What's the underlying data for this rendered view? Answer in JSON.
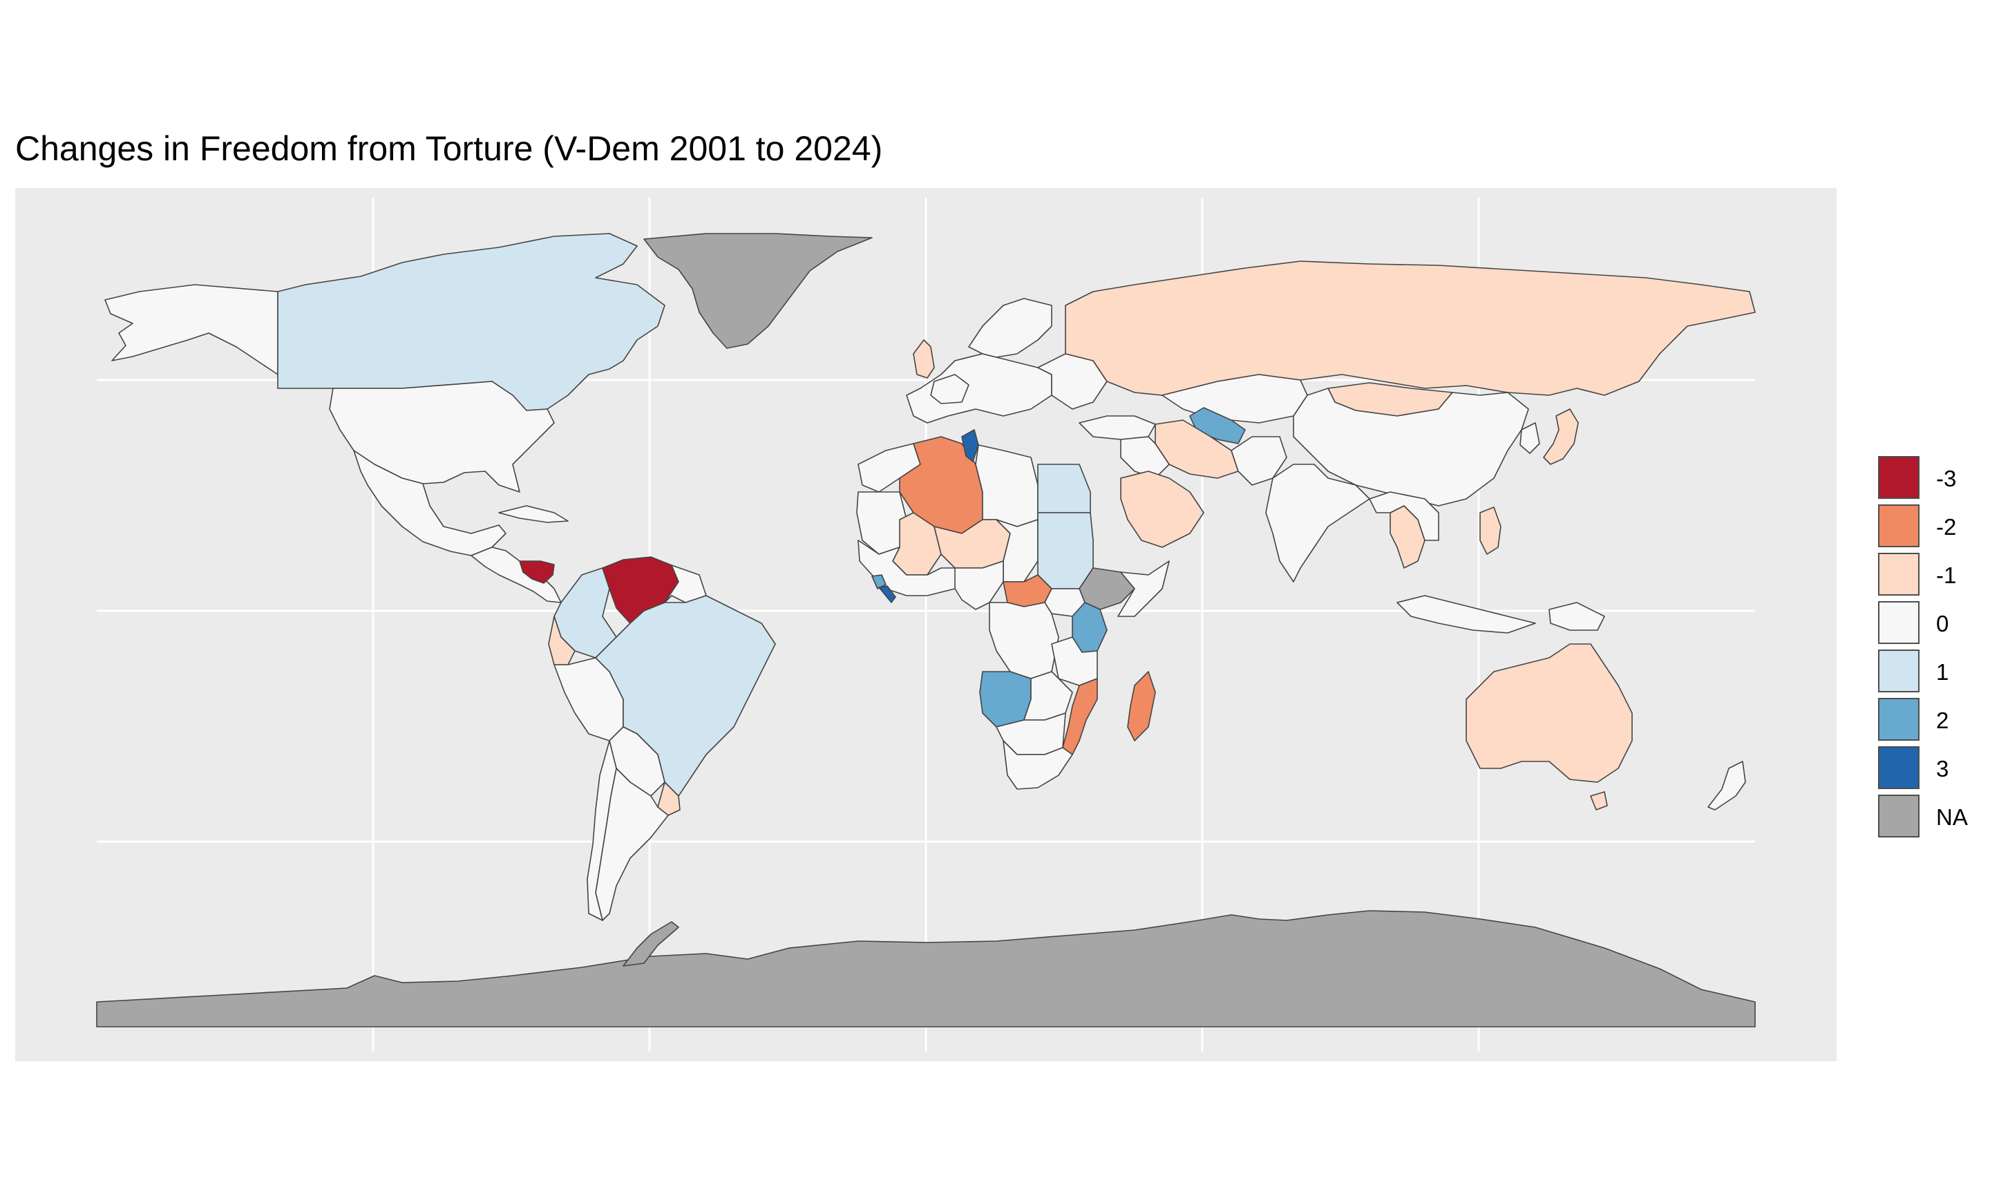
{
  "title": "Changes in Freedom from Torture (V-Dem 2001 to 2024)",
  "legend": [
    {
      "label": "-3",
      "color": "#b2182b"
    },
    {
      "label": "-2",
      "color": "#ef8a62"
    },
    {
      "label": "-1",
      "color": "#fddbc7"
    },
    {
      "label": "0",
      "color": "#f7f7f7"
    },
    {
      "label": "1",
      "color": "#d1e5f0"
    },
    {
      "label": "2",
      "color": "#67a9cf"
    },
    {
      "label": "3",
      "color": "#2166ac"
    },
    {
      "label": "NA",
      "color": "#a6a6a6"
    }
  ],
  "map_data": {
    "type": "choropleth",
    "regions": [
      {
        "name": "Greenland",
        "value": "NA"
      },
      {
        "name": "Antarctica",
        "value": "NA"
      },
      {
        "name": "Canada",
        "value": 1
      },
      {
        "name": "Alaska (United States)",
        "value": 0
      },
      {
        "name": "United States",
        "value": 0
      },
      {
        "name": "Mexico",
        "value": 0
      },
      {
        "name": "Nicaragua",
        "value": -3
      },
      {
        "name": "Venezuela",
        "value": -3
      },
      {
        "name": "Colombia",
        "value": 1
      },
      {
        "name": "Brazil",
        "value": 1
      },
      {
        "name": "Ecuador",
        "value": -1
      },
      {
        "name": "Uruguay",
        "value": -1
      },
      {
        "name": "Peru",
        "value": 0
      },
      {
        "name": "Argentina",
        "value": 0
      },
      {
        "name": "Chile",
        "value": 0
      },
      {
        "name": "Russia",
        "value": -1
      },
      {
        "name": "China",
        "value": 0
      },
      {
        "name": "Mongolia",
        "value": -1
      },
      {
        "name": "Kazakhstan",
        "value": 0
      },
      {
        "name": "Uzbekistan",
        "value": 2
      },
      {
        "name": "Iran",
        "value": -1
      },
      {
        "name": "India",
        "value": 0
      },
      {
        "name": "Algeria",
        "value": -2
      },
      {
        "name": "Tunisia",
        "value": 3
      },
      {
        "name": "Mali",
        "value": -1
      },
      {
        "name": "Niger",
        "value": -1
      },
      {
        "name": "Egypt",
        "value": 1
      },
      {
        "name": "Sudan",
        "value": 1
      },
      {
        "name": "Saudi Arabia",
        "value": -1
      },
      {
        "name": "Central African Republic",
        "value": -2
      },
      {
        "name": "Ethiopia",
        "value": "NA"
      },
      {
        "name": "Kenya",
        "value": 2
      },
      {
        "name": "Angola",
        "value": 2
      },
      {
        "name": "Mozambique",
        "value": -2
      },
      {
        "name": "Madagascar",
        "value": -2
      },
      {
        "name": "Liberia",
        "value": 3
      },
      {
        "name": "Sierra Leone",
        "value": 2
      },
      {
        "name": "South Africa",
        "value": 0
      },
      {
        "name": "Australia",
        "value": -1
      },
      {
        "name": "Japan",
        "value": -1
      },
      {
        "name": "Thailand",
        "value": -1
      },
      {
        "name": "Philippines",
        "value": -1
      },
      {
        "name": "United Kingdom",
        "value": -1
      },
      {
        "name": "Indonesia",
        "value": 0
      },
      {
        "name": "Papua New Guinea",
        "value": 0
      },
      {
        "name": "New Zealand",
        "value": 0
      }
    ]
  }
}
